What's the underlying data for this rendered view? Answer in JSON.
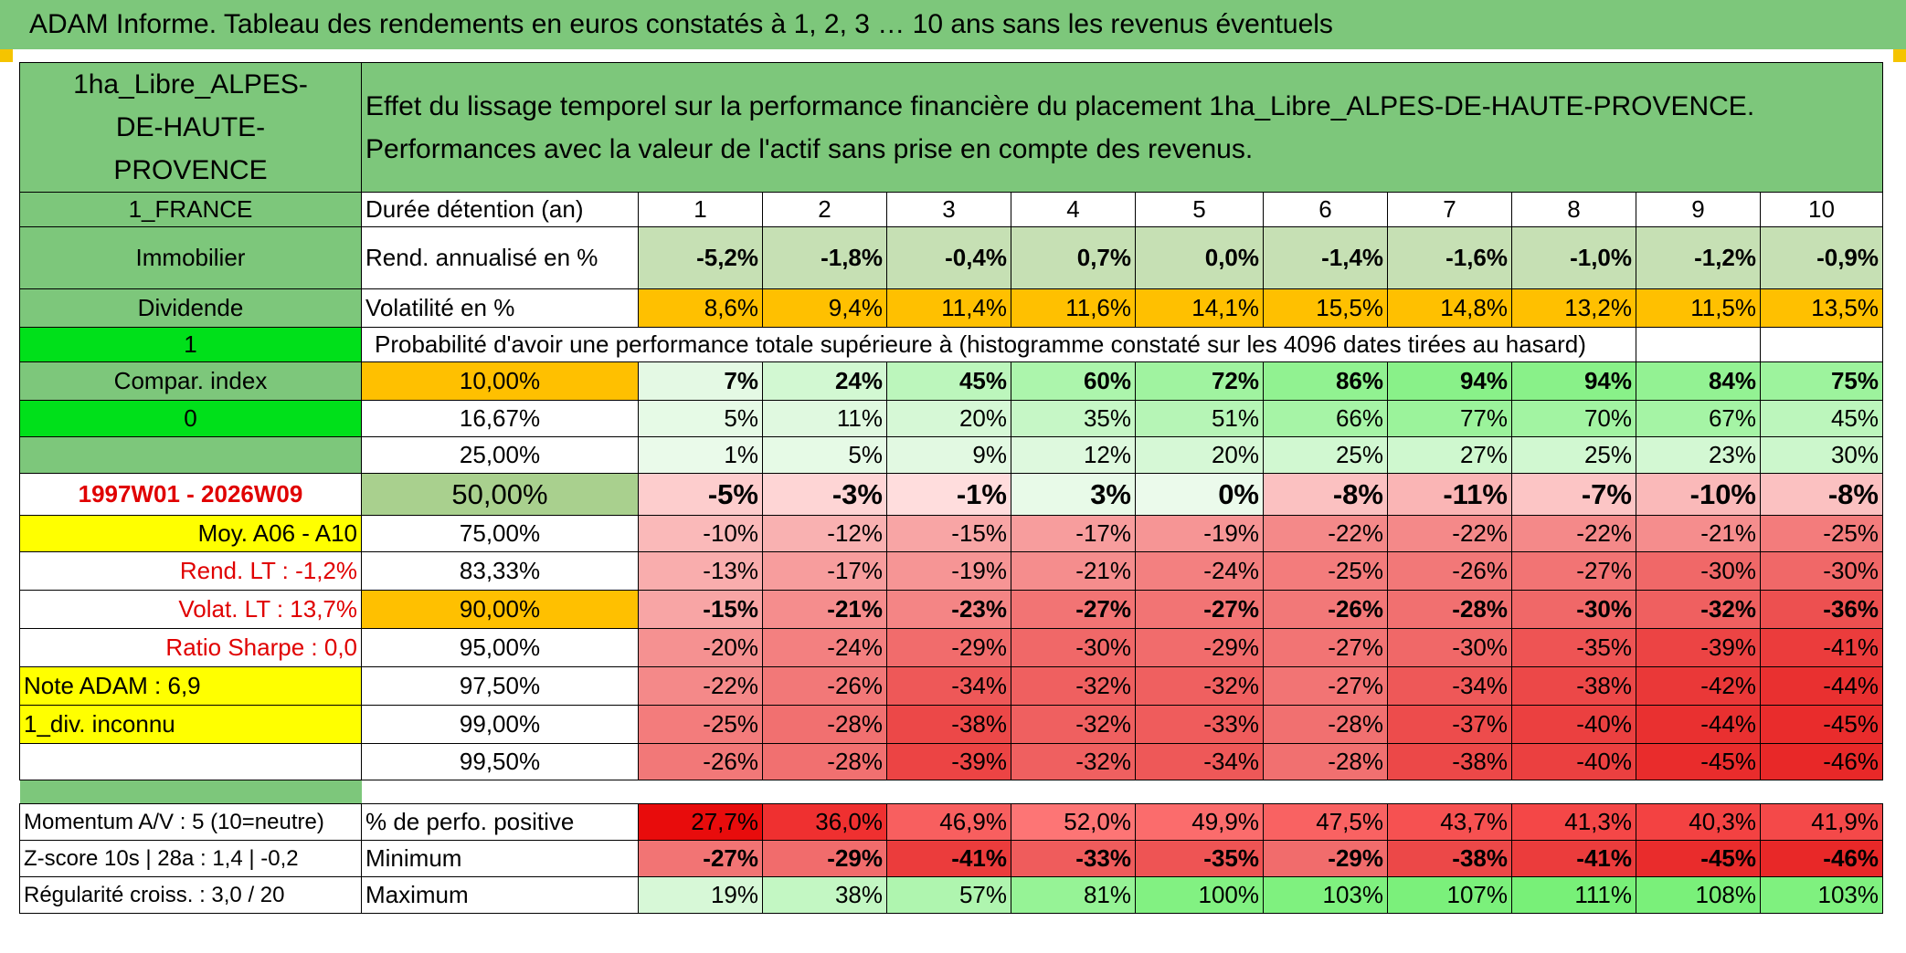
{
  "title": "ADAM Informe. Tableau des rendements en euros constatés à 1, 2, 3 … 10 ans sans les revenus éventuels",
  "asset_name": "1ha_Libre_ALPES-DE-HAUTE-PROVENCE",
  "description": "Effet du lissage temporel sur la performance financière du placement 1ha_Libre_ALPES-DE-HAUTE-PROVENCE. Performances avec la valeur de l'actif sans prise en compte des revenus.",
  "left": {
    "country": "1_FRANCE",
    "category": "Immobilier",
    "dividend": "Dividende",
    "flag1": "1",
    "compar": "Compar. index",
    "flag0": "0",
    "period": "1997W01 - 2026W09",
    "moy": "Moy. A06 - A10",
    "rend_lt": "Rend. LT :   -1,2%",
    "volat_lt": "Volat. LT :   13,7%",
    "sharpe": "Ratio Sharpe :    0,0",
    "note": "Note ADAM : 6,9",
    "div": "1_div. inconnu",
    "momentum": "Momentum A/V : 5 (10=neutre)",
    "zscore": "Z-score 10s | 28a : 1,4 | -0,2",
    "regularite": "Régularité croiss. : 3,0 / 20"
  },
  "labels": {
    "duree": "Durée détention (an)",
    "rend": "Rend. annualisé en %",
    "volat": "Volatilité en %",
    "proba": "Probabilité d'avoir une performance totale supérieure à (histogramme constaté sur les 4096 dates tirées au hasard)",
    "positive": "% de perfo. positive",
    "minimum": "Minimum",
    "maximum": "Maximum"
  },
  "years": [
    "1",
    "2",
    "3",
    "4",
    "5",
    "6",
    "7",
    "8",
    "9",
    "10"
  ],
  "rend": [
    "-5,2%",
    "-1,8%",
    "-0,4%",
    "0,7%",
    "0,0%",
    "-1,4%",
    "-1,6%",
    "-1,0%",
    "-1,2%",
    "-0,9%"
  ],
  "volat": [
    "8,6%",
    "9,4%",
    "11,4%",
    "11,6%",
    "14,1%",
    "15,5%",
    "14,8%",
    "13,2%",
    "11,5%",
    "13,5%"
  ],
  "quantiles": [
    {
      "label": "10,00%",
      "values": [
        "7%",
        "24%",
        "45%",
        "60%",
        "72%",
        "86%",
        "94%",
        "94%",
        "84%",
        "75%"
      ]
    },
    {
      "label": "16,67%",
      "values": [
        "5%",
        "11%",
        "20%",
        "35%",
        "51%",
        "66%",
        "77%",
        "70%",
        "67%",
        "45%"
      ]
    },
    {
      "label": "25,00%",
      "values": [
        "1%",
        "5%",
        "9%",
        "12%",
        "20%",
        "25%",
        "27%",
        "25%",
        "23%",
        "30%"
      ]
    },
    {
      "label": "50,00%",
      "values": [
        "-5%",
        "-3%",
        "-1%",
        "3%",
        "0%",
        "-8%",
        "-11%",
        "-7%",
        "-10%",
        "-8%"
      ]
    },
    {
      "label": "75,00%",
      "values": [
        "-10%",
        "-12%",
        "-15%",
        "-17%",
        "-19%",
        "-22%",
        "-22%",
        "-22%",
        "-21%",
        "-25%"
      ]
    },
    {
      "label": "83,33%",
      "values": [
        "-13%",
        "-17%",
        "-19%",
        "-21%",
        "-24%",
        "-25%",
        "-26%",
        "-27%",
        "-30%",
        "-30%"
      ]
    },
    {
      "label": "90,00%",
      "values": [
        "-15%",
        "-21%",
        "-23%",
        "-27%",
        "-27%",
        "-26%",
        "-28%",
        "-30%",
        "-32%",
        "-36%"
      ]
    },
    {
      "label": "95,00%",
      "values": [
        "-20%",
        "-24%",
        "-29%",
        "-30%",
        "-29%",
        "-27%",
        "-30%",
        "-35%",
        "-39%",
        "-41%"
      ]
    },
    {
      "label": "97,50%",
      "values": [
        "-22%",
        "-26%",
        "-34%",
        "-32%",
        "-32%",
        "-27%",
        "-34%",
        "-38%",
        "-42%",
        "-44%"
      ]
    },
    {
      "label": "99,00%",
      "values": [
        "-25%",
        "-28%",
        "-38%",
        "-32%",
        "-33%",
        "-28%",
        "-37%",
        "-40%",
        "-44%",
        "-45%"
      ]
    },
    {
      "label": "99,50%",
      "values": [
        "-26%",
        "-28%",
        "-39%",
        "-32%",
        "-34%",
        "-28%",
        "-38%",
        "-40%",
        "-45%",
        "-46%"
      ]
    }
  ],
  "positive": [
    "27,7%",
    "36,0%",
    "46,9%",
    "52,0%",
    "49,9%",
    "47,5%",
    "43,7%",
    "41,3%",
    "40,3%",
    "41,9%"
  ],
  "minimum": [
    "-27%",
    "-29%",
    "-41%",
    "-33%",
    "-35%",
    "-29%",
    "-38%",
    "-41%",
    "-45%",
    "-46%"
  ],
  "maximum": [
    "19%",
    "38%",
    "57%",
    "81%",
    "100%",
    "103%",
    "107%",
    "111%",
    "108%",
    "103%"
  ]
}
